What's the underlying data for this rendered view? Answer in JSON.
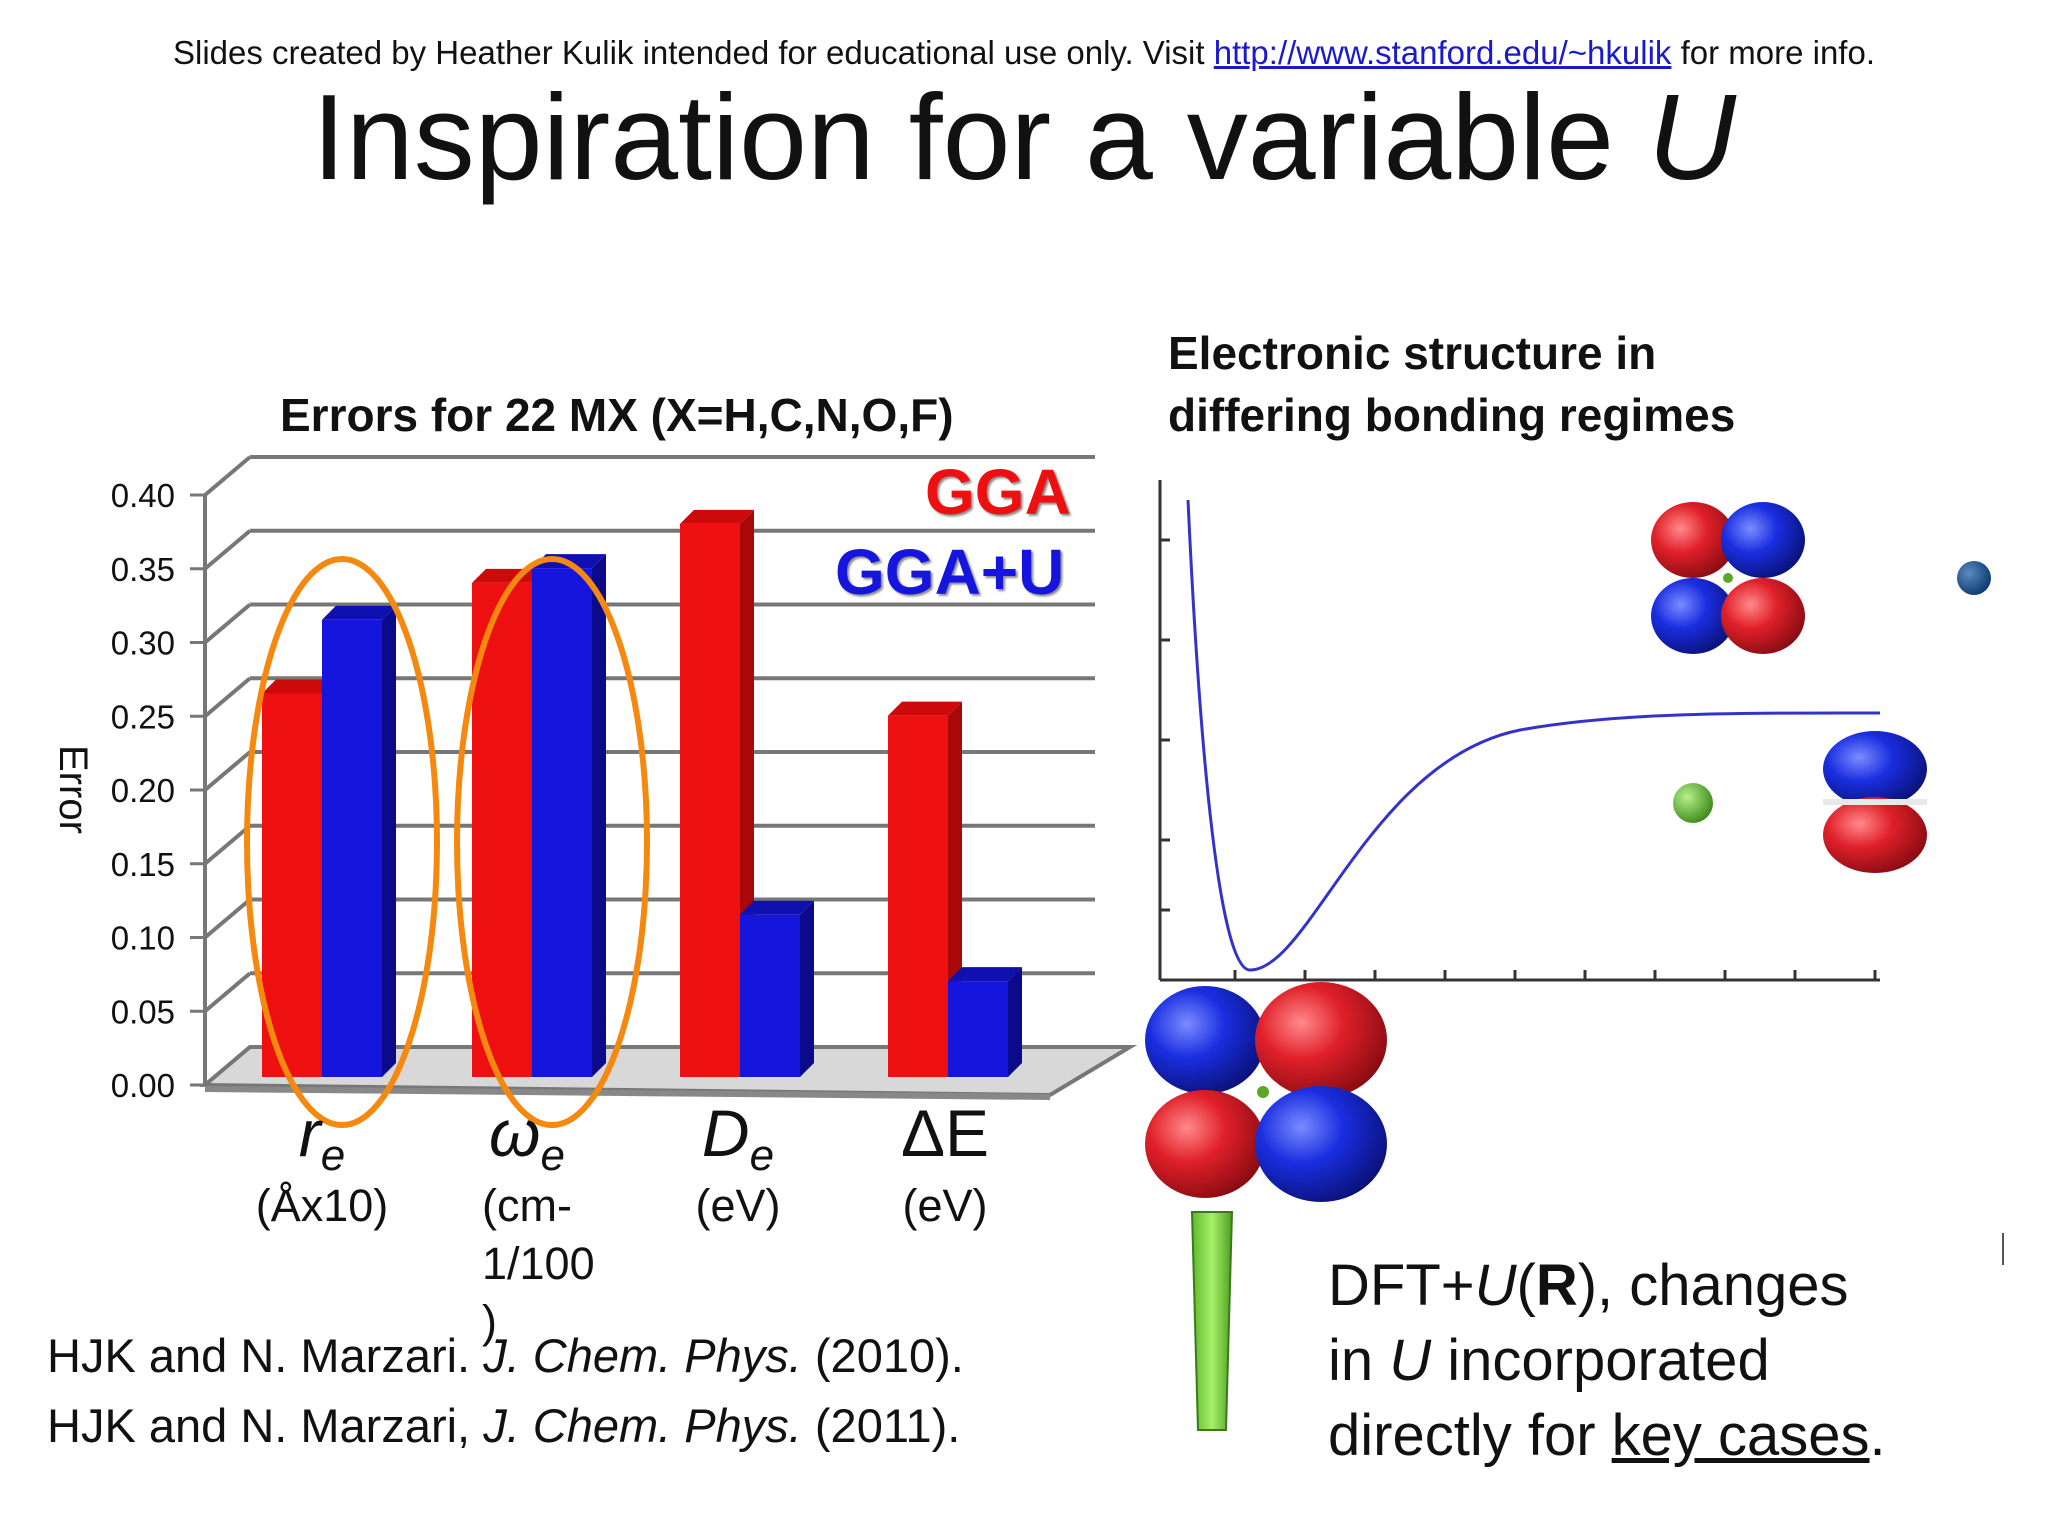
{
  "header": {
    "credit_prefix": "Slides created by Heather Kulik intended for educational use only. Visit ",
    "credit_link": "http://www.stanford.edu/~hkulik",
    "credit_suffix": " for more info.",
    "title_main": "Inspiration for a variable ",
    "title_var": "U"
  },
  "chart_data": {
    "type": "bar",
    "title": "Errors for 22 MX (X=H,C,N,O,F)",
    "ylabel": "Error",
    "xlabel": "",
    "ylim": [
      0,
      0.4
    ],
    "yticks": [
      "0.00",
      "0.05",
      "0.10",
      "0.15",
      "0.20",
      "0.25",
      "0.30",
      "0.35",
      "0.40"
    ],
    "categories": [
      {
        "symbol": "r",
        "sub": "e",
        "unit_lines": [
          "(Åx10)"
        ]
      },
      {
        "symbol": "ω",
        "sub": "e",
        "unit_lines": [
          "(cm-",
          "1/100",
          ")"
        ]
      },
      {
        "symbol": "D",
        "sub": "e",
        "unit_lines": [
          "(eV)"
        ]
      },
      {
        "symbol": "ΔE",
        "sub": "",
        "unit_lines": [
          "(eV)"
        ]
      }
    ],
    "series": [
      {
        "name": "GGA",
        "color": "#ee1010",
        "values": [
          0.26,
          0.335,
          0.375,
          0.245
        ]
      },
      {
        "name": "GGA+U",
        "color": "#1515dd",
        "values": [
          0.31,
          0.345,
          0.11,
          0.065
        ]
      }
    ],
    "highlighted_categories": [
      0,
      1
    ],
    "highlight_color": "#f5890f",
    "grid": true,
    "legend_position": "top-right"
  },
  "right_panel": {
    "heading_line1": "Electronic structure in",
    "heading_line2": "differing bonding regimes",
    "curve_color": "#3333cc",
    "orbital_colors": {
      "red": "#e0202a",
      "blue": "#1a2ee0",
      "green": "#5aa82a"
    },
    "exclamation_color": "#7ed63a"
  },
  "references": {
    "ref1_authors": "HJK and N. Marzari. ",
    "ref1_journal": "J. Chem. Phys.",
    "ref1_year": " (2010).",
    "ref2_authors": "HJK and N. Marzari, ",
    "ref2_journal": "J. Chem. Phys.",
    "ref2_year": " (2011)."
  },
  "dft_text": {
    "line1_a": "DFT+",
    "line1_u": "U",
    "line1_b": "(",
    "line1_r": "R",
    "line1_c": "), changes",
    "line2_a": "in ",
    "line2_u": "U",
    "line2_b": " incorporated",
    "line3_a": "directly for ",
    "line3_key": "key cases",
    "line3_b": "."
  }
}
